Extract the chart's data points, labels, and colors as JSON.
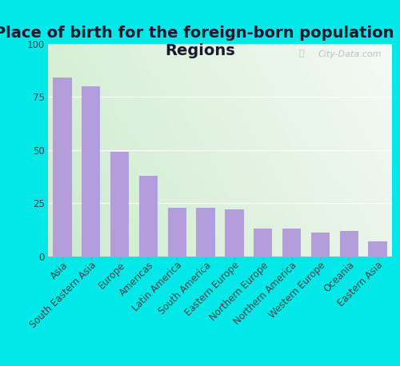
{
  "title": "Place of birth for the foreign-born population -\nRegions",
  "categories": [
    "Asia",
    "South Eastern Asia",
    "Europe",
    "Americas",
    "Latin America",
    "South America",
    "Eastern Europe",
    "Northern Europe",
    "Northern America",
    "Western Europe",
    "Oceania",
    "Eastern Asia"
  ],
  "values": [
    84,
    80,
    49,
    38,
    23,
    23,
    22,
    13,
    13,
    11,
    12,
    7
  ],
  "bar_color": "#b39ddb",
  "bg_topleft": "#d4f0d4",
  "bg_topright": "#f5faf5",
  "bg_bottomleft": "#c8ecc8",
  "bg_bottomright": "#eaf5ea",
  "outer_bg": "#00e8e8",
  "ylim": [
    0,
    100
  ],
  "yticks": [
    0,
    25,
    50,
    75,
    100
  ],
  "title_fontsize": 14,
  "tick_fontsize": 8.5,
  "watermark": "City-Data.com"
}
